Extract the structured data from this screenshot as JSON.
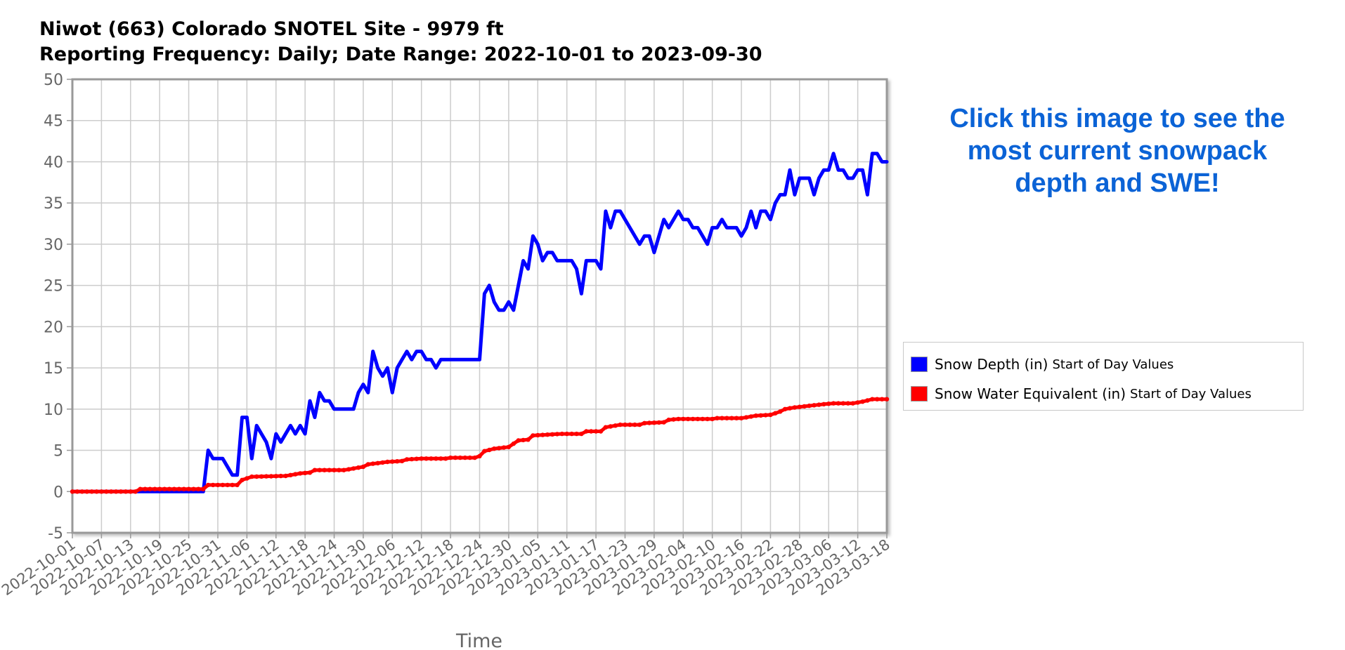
{
  "page": {
    "title_line1": "Niwot (663) Colorado SNOTEL Site - 9979 ft",
    "title_line2": "Reporting Frequency: Daily; Date Range: 2022-10-01 to 2023-09-30",
    "promo_text": "Click this image to see the most current snowpack depth and SWE!"
  },
  "chart_data": {
    "type": "line",
    "title": "Niwot (663) Colorado SNOTEL Site - 9979 ft",
    "subtitle": "Reporting Frequency: Daily; Date Range: 2022-10-01 to 2023-09-30",
    "xlabel": "Time",
    "ylabel": "",
    "ylim": [
      -5,
      50
    ],
    "yticks": [
      -5,
      0,
      5,
      10,
      15,
      20,
      25,
      30,
      35,
      40,
      45,
      50
    ],
    "xlim": [
      "2022-10-01",
      "2023-03-18"
    ],
    "xticks": [
      "2022-10-01",
      "2022-10-07",
      "2022-10-13",
      "2022-10-19",
      "2022-10-25",
      "2022-10-31",
      "2022-11-06",
      "2022-11-12",
      "2022-11-18",
      "2022-11-24",
      "2022-11-30",
      "2022-12-06",
      "2022-12-12",
      "2022-12-18",
      "2022-12-24",
      "2022-12-30",
      "2023-01-05",
      "2023-01-11",
      "2023-01-17",
      "2023-01-23",
      "2023-01-29",
      "2023-02-04",
      "2023-02-10",
      "2023-02-16",
      "2023-02-22",
      "2023-02-28",
      "2023-03-06",
      "2023-03-12",
      "2023-03-18"
    ],
    "grid": true,
    "legend_position": "right",
    "series": [
      {
        "name": "Snow Depth (in)",
        "sub": "Start of Day Values",
        "color": "#0000ff",
        "points": [
          [
            "2022-10-01",
            0
          ],
          [
            "2022-10-28",
            0
          ],
          [
            "2022-10-29",
            5
          ],
          [
            "2022-10-30",
            4
          ],
          [
            "2022-11-01",
            4
          ],
          [
            "2022-11-03",
            2
          ],
          [
            "2022-11-04",
            2
          ],
          [
            "2022-11-05",
            9
          ],
          [
            "2022-11-06",
            9
          ],
          [
            "2022-11-07",
            4
          ],
          [
            "2022-11-08",
            8
          ],
          [
            "2022-11-09",
            7
          ],
          [
            "2022-11-10",
            6
          ],
          [
            "2022-11-11",
            4
          ],
          [
            "2022-11-12",
            7
          ],
          [
            "2022-11-13",
            6
          ],
          [
            "2022-11-15",
            8
          ],
          [
            "2022-11-16",
            7
          ],
          [
            "2022-11-17",
            8
          ],
          [
            "2022-11-18",
            7
          ],
          [
            "2022-11-19",
            11
          ],
          [
            "2022-11-20",
            9
          ],
          [
            "2022-11-21",
            12
          ],
          [
            "2022-11-22",
            11
          ],
          [
            "2022-11-23",
            11
          ],
          [
            "2022-11-24",
            10
          ],
          [
            "2022-11-28",
            10
          ],
          [
            "2022-11-29",
            12
          ],
          [
            "2022-11-30",
            13
          ],
          [
            "2022-12-01",
            12
          ],
          [
            "2022-12-02",
            17
          ],
          [
            "2022-12-03",
            15
          ],
          [
            "2022-12-04",
            14
          ],
          [
            "2022-12-05",
            15
          ],
          [
            "2022-12-06",
            12
          ],
          [
            "2022-12-07",
            15
          ],
          [
            "2022-12-08",
            16
          ],
          [
            "2022-12-09",
            17
          ],
          [
            "2022-12-10",
            16
          ],
          [
            "2022-12-11",
            17
          ],
          [
            "2022-12-12",
            17
          ],
          [
            "2022-12-13",
            16
          ],
          [
            "2022-12-14",
            16
          ],
          [
            "2022-12-15",
            15
          ],
          [
            "2022-12-16",
            16
          ],
          [
            "2022-12-24",
            16
          ],
          [
            "2022-12-25",
            24
          ],
          [
            "2022-12-26",
            25
          ],
          [
            "2022-12-27",
            23
          ],
          [
            "2022-12-28",
            22
          ],
          [
            "2022-12-29",
            22
          ],
          [
            "2022-12-30",
            23
          ],
          [
            "2022-12-31",
            22
          ],
          [
            "2023-01-01",
            25
          ],
          [
            "2023-01-02",
            28
          ],
          [
            "2023-01-03",
            27
          ],
          [
            "2023-01-04",
            31
          ],
          [
            "2023-01-05",
            30
          ],
          [
            "2023-01-06",
            28
          ],
          [
            "2023-01-07",
            29
          ],
          [
            "2023-01-08",
            29
          ],
          [
            "2023-01-09",
            28
          ],
          [
            "2023-01-12",
            28
          ],
          [
            "2023-01-13",
            27
          ],
          [
            "2023-01-14",
            24
          ],
          [
            "2023-01-15",
            28
          ],
          [
            "2023-01-17",
            28
          ],
          [
            "2023-01-18",
            27
          ],
          [
            "2023-01-19",
            34
          ],
          [
            "2023-01-20",
            32
          ],
          [
            "2023-01-21",
            34
          ],
          [
            "2023-01-22",
            34
          ],
          [
            "2023-01-23",
            33
          ],
          [
            "2023-01-26",
            30
          ],
          [
            "2023-01-27",
            31
          ],
          [
            "2023-01-28",
            31
          ],
          [
            "2023-01-29",
            29
          ],
          [
            "2023-01-30",
            31
          ],
          [
            "2023-01-31",
            33
          ],
          [
            "2023-02-01",
            32
          ],
          [
            "2023-02-02",
            33
          ],
          [
            "2023-02-03",
            34
          ],
          [
            "2023-02-04",
            33
          ],
          [
            "2023-02-05",
            33
          ],
          [
            "2023-02-06",
            32
          ],
          [
            "2023-02-07",
            32
          ],
          [
            "2023-02-09",
            30
          ],
          [
            "2023-02-10",
            32
          ],
          [
            "2023-02-11",
            32
          ],
          [
            "2023-02-12",
            33
          ],
          [
            "2023-02-13",
            32
          ],
          [
            "2023-02-15",
            32
          ],
          [
            "2023-02-16",
            31
          ],
          [
            "2023-02-17",
            32
          ],
          [
            "2023-02-18",
            34
          ],
          [
            "2023-02-19",
            32
          ],
          [
            "2023-02-20",
            34
          ],
          [
            "2023-02-21",
            34
          ],
          [
            "2023-02-22",
            33
          ],
          [
            "2023-02-23",
            35
          ],
          [
            "2023-02-24",
            36
          ],
          [
            "2023-02-25",
            36
          ],
          [
            "2023-02-26",
            39
          ],
          [
            "2023-02-27",
            36
          ],
          [
            "2023-02-28",
            38
          ],
          [
            "2023-03-02",
            38
          ],
          [
            "2023-03-03",
            36
          ],
          [
            "2023-03-04",
            38
          ],
          [
            "2023-03-05",
            39
          ],
          [
            "2023-03-06",
            39
          ],
          [
            "2023-03-07",
            41
          ],
          [
            "2023-03-08",
            39
          ],
          [
            "2023-03-09",
            39
          ],
          [
            "2023-03-10",
            38
          ],
          [
            "2023-03-11",
            38
          ],
          [
            "2023-03-12",
            39
          ],
          [
            "2023-03-13",
            39
          ],
          [
            "2023-03-14",
            36
          ],
          [
            "2023-03-15",
            41
          ],
          [
            "2023-03-16",
            41
          ],
          [
            "2023-03-17",
            40
          ],
          [
            "2023-03-18",
            40
          ]
        ]
      },
      {
        "name": "Snow Water Equivalent (in)",
        "sub": "Start of Day Values",
        "color": "#ff0000",
        "points": [
          [
            "2022-10-01",
            0
          ],
          [
            "2022-10-14",
            0
          ],
          [
            "2022-10-15",
            0.3
          ],
          [
            "2022-10-24",
            0.3
          ],
          [
            "2022-10-28",
            0.3
          ],
          [
            "2022-10-29",
            0.8
          ],
          [
            "2022-11-04",
            0.8
          ],
          [
            "2022-11-05",
            1.4
          ],
          [
            "2022-11-07",
            1.8
          ],
          [
            "2022-11-14",
            1.9
          ],
          [
            "2022-11-17",
            2.2
          ],
          [
            "2022-11-19",
            2.3
          ],
          [
            "2022-11-20",
            2.6
          ],
          [
            "2022-11-26",
            2.6
          ],
          [
            "2022-11-30",
            3.0
          ],
          [
            "2022-12-01",
            3.3
          ],
          [
            "2022-12-05",
            3.6
          ],
          [
            "2022-12-08",
            3.7
          ],
          [
            "2022-12-09",
            3.9
          ],
          [
            "2022-12-12",
            4.0
          ],
          [
            "2022-12-17",
            4.0
          ],
          [
            "2022-12-18",
            4.1
          ],
          [
            "2022-12-23",
            4.1
          ],
          [
            "2022-12-24",
            4.3
          ],
          [
            "2022-12-25",
            4.9
          ],
          [
            "2022-12-27",
            5.2
          ],
          [
            "2022-12-30",
            5.4
          ],
          [
            "2023-01-01",
            6.2
          ],
          [
            "2023-01-03",
            6.3
          ],
          [
            "2023-01-04",
            6.8
          ],
          [
            "2023-01-07",
            6.9
          ],
          [
            "2023-01-10",
            7.0
          ],
          [
            "2023-01-14",
            7.0
          ],
          [
            "2023-01-15",
            7.3
          ],
          [
            "2023-01-18",
            7.3
          ],
          [
            "2023-01-19",
            7.8
          ],
          [
            "2023-01-22",
            8.1
          ],
          [
            "2023-01-26",
            8.1
          ],
          [
            "2023-01-27",
            8.3
          ],
          [
            "2023-01-31",
            8.4
          ],
          [
            "2023-02-01",
            8.7
          ],
          [
            "2023-02-03",
            8.8
          ],
          [
            "2023-02-10",
            8.8
          ],
          [
            "2023-02-11",
            8.9
          ],
          [
            "2023-02-16",
            8.9
          ],
          [
            "2023-02-17",
            9.0
          ],
          [
            "2023-02-19",
            9.2
          ],
          [
            "2023-02-22",
            9.3
          ],
          [
            "2023-02-24",
            9.7
          ],
          [
            "2023-02-25",
            10.0
          ],
          [
            "2023-02-27",
            10.2
          ],
          [
            "2023-03-02",
            10.4
          ],
          [
            "2023-03-05",
            10.6
          ],
          [
            "2023-03-07",
            10.7
          ],
          [
            "2023-03-11",
            10.7
          ],
          [
            "2023-03-13",
            10.9
          ],
          [
            "2023-03-15",
            11.2
          ],
          [
            "2023-03-18",
            11.2
          ]
        ]
      }
    ]
  }
}
